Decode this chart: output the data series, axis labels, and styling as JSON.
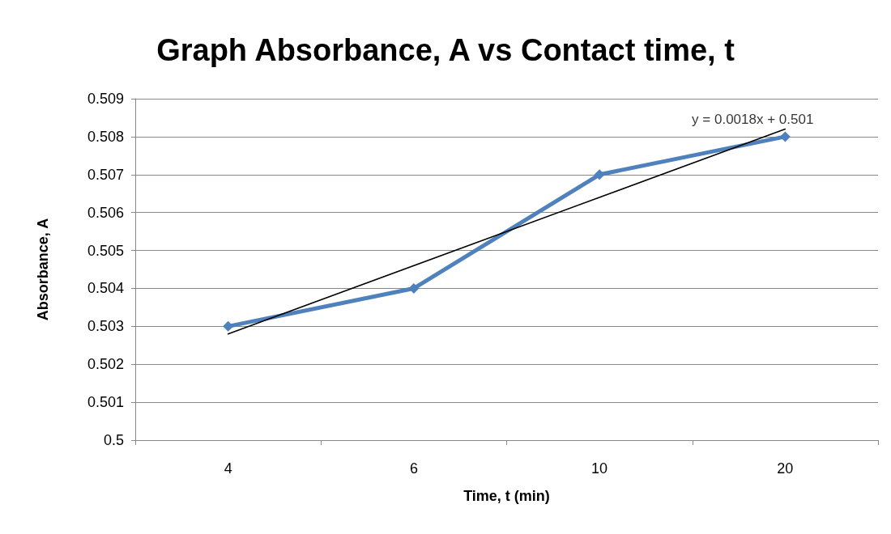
{
  "chart_data": {
    "type": "line",
    "title": "Graph Absorbance, A vs Contact time, t",
    "xlabel": "Time, t (min)",
    "ylabel": "Absorbance, A",
    "categories": [
      "4",
      "6",
      "10",
      "20"
    ],
    "series": [
      {
        "color": "#4f81bd",
        "values": [
          0.503,
          0.504,
          0.507,
          0.508
        ],
        "marker": "diamond"
      },
      {
        "type": "line",
        "color": "#000000",
        "x": [
          "4",
          "20"
        ],
        "values": [
          0.5028,
          0.5082
        ],
        "marker": "none"
      }
    ],
    "ylim": [
      0.5,
      0.509
    ],
    "yticks": [
      0.5,
      0.501,
      0.502,
      0.503,
      0.504,
      0.505,
      0.506,
      0.507,
      0.508,
      0.509
    ],
    "grid": "y",
    "annotations": [
      {
        "text": "y = 0.0018x + 0.501",
        "x": "20",
        "y": 0.5082
      }
    ]
  }
}
